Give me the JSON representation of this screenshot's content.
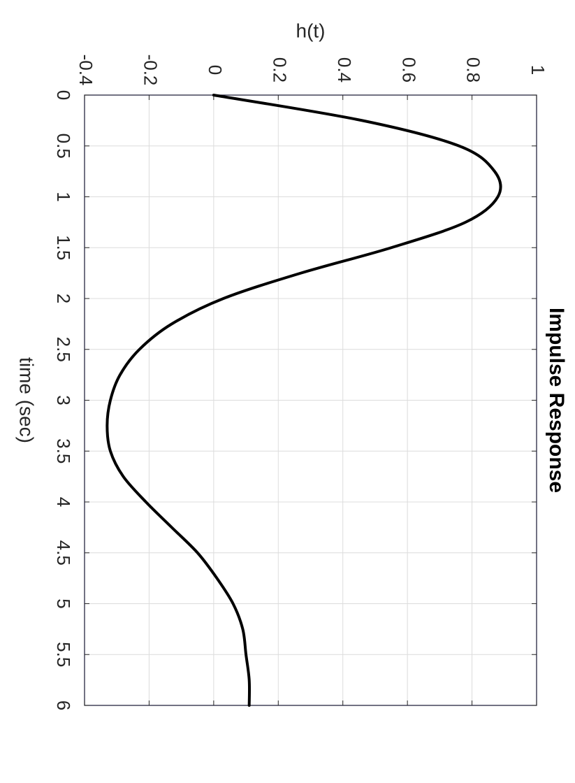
{
  "chart_data": {
    "type": "line",
    "title": "Impulse Response",
    "xlabel": "time (sec)",
    "ylabel": "h(t)",
    "xlim": [
      0,
      6
    ],
    "ylim": [
      -0.4,
      1
    ],
    "xticks": [
      0,
      0.5,
      1,
      1.5,
      2,
      2.5,
      3,
      3.5,
      4,
      4.5,
      5,
      5.5,
      6
    ],
    "yticks": [
      -0.4,
      -0.2,
      0,
      0.2,
      0.4,
      0.6,
      0.8,
      1
    ],
    "xtick_labels": [
      "0",
      "0.5",
      "1",
      "1.5",
      "2",
      "2.5",
      "3",
      "3.5",
      "4",
      "4.5",
      "5",
      "5.5",
      "6"
    ],
    "ytick_labels": [
      "-0.4",
      "-0.2",
      "0",
      "0.2",
      "0.4",
      "0.6",
      "0.8",
      "1"
    ],
    "grid": true,
    "orientation": "rotated-90-clockwise",
    "line_color": "#000000",
    "series": [
      {
        "x": [
          0,
          0.25,
          0.5,
          0.75,
          1.0,
          1.25,
          1.5,
          1.75,
          2.0,
          2.25,
          2.5,
          2.75,
          3.0,
          3.25,
          3.5,
          3.75,
          4.0,
          4.25,
          4.5,
          4.75,
          5.0,
          5.25,
          5.5,
          5.75,
          6.0
        ],
        "y": [
          0.0,
          0.46,
          0.76,
          0.87,
          0.88,
          0.78,
          0.55,
          0.27,
          0.03,
          -0.13,
          -0.23,
          -0.29,
          -0.32,
          -0.33,
          -0.32,
          -0.28,
          -0.21,
          -0.13,
          -0.05,
          0.01,
          0.06,
          0.09,
          0.1,
          0.11,
          0.11
        ]
      }
    ]
  }
}
